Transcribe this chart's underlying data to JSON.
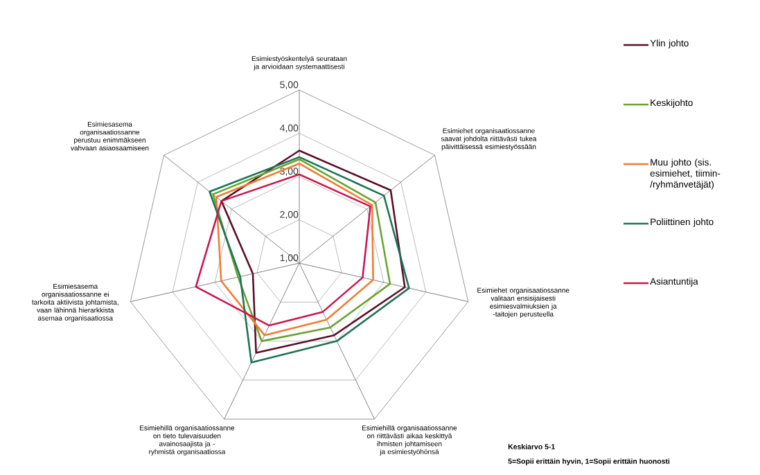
{
  "chart_data": {
    "type": "radar",
    "categories": [
      "Esimiestyöskentelyä seurataan ja arvioidaan systemaattisesti",
      "Esimiehet organisaatiossanne saavat johdolta riittävästi tukea päivittäisessä esimiestyössään",
      "Esimiehet organisaatiossanne valitaan ensisijaisesti esimiesvalmiuksien ja -taitojen perusteella",
      "Esimiehillä organisaatiossanne on riittävästi aikaa keskittyä ihmisten johtamiseen ja esimiestyöhönsä",
      "Esimiehillä organisaatiossanne on tieto tulevaisuuden avainosaajista ja -ryhmistä organisaatiossa",
      "Esimiesasema organisaatiossanne ei tarkoita aktiivista johtamista, vaan lähinnä hierarkkista asemaa organisaatiossa",
      "Esimiesasema organisaatiossanne perustuu enimmäkseen vahvaan asiaosaamiseen"
    ],
    "series": [
      {
        "name": "Ylin johto",
        "color": "#5a0f2a",
        "values": [
          3.6,
          3.7,
          3.5,
          2.85,
          3.3,
          2.1,
          3.3
        ]
      },
      {
        "name": "Keskijohto",
        "color": "#6aa32e",
        "values": [
          3.4,
          3.25,
          3.15,
          2.65,
          3.0,
          2.45,
          3.55
        ]
      },
      {
        "name": "Muu johto (sis. esimiehet, tiimin- /ryhmänvetäjät)",
        "color": "#f07b32",
        "values": [
          3.3,
          3.15,
          2.75,
          2.45,
          2.85,
          2.85,
          3.45
        ]
      },
      {
        "name": "Poliittinen johto",
        "color": "#1e7355",
        "values": [
          3.45,
          3.5,
          3.6,
          3.0,
          3.55,
          2.4,
          3.65
        ]
      },
      {
        "name": "Asiantuntija",
        "color": "#c8174f",
        "values": [
          3.05,
          3.1,
          2.5,
          2.25,
          2.6,
          3.45,
          3.3
        ]
      }
    ],
    "ylim": [
      1,
      5
    ],
    "yticks": [
      {
        "value": 1,
        "label": "1,00"
      },
      {
        "value": 2,
        "label": "2,00"
      },
      {
        "value": 3,
        "label": "3,00"
      },
      {
        "value": 4,
        "label": "4,00"
      },
      {
        "value": 5,
        "label": "5,00"
      }
    ],
    "grid": true,
    "legend": "right",
    "marker": "none",
    "line_style": "solid",
    "annotations": [
      "Keskiarvo 5-1",
      "5=Sopii erittäin hyvin, 1=Sopii erittäin huonosti"
    ]
  }
}
